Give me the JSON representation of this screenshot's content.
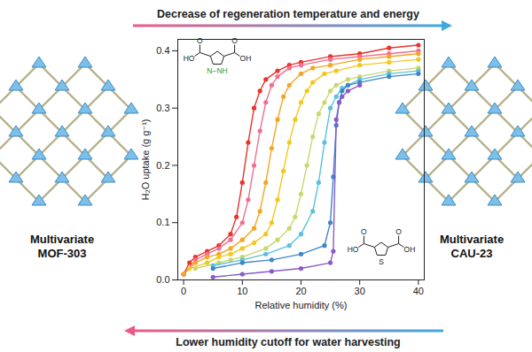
{
  "chart_data": {
    "type": "line",
    "marker": "circle",
    "grid": false,
    "xlabel": "Relative humidity (%)",
    "ylabel": "H₂O uptake (g g⁻¹)",
    "xlim": [
      -1,
      41
    ],
    "xticks": [
      0,
      10,
      20,
      30,
      40
    ],
    "ylim": [
      0,
      0.42
    ],
    "yticks": [
      {
        "value": 0,
        "label": "0.0"
      },
      0.1,
      0.2,
      0.3,
      0.4
    ],
    "series": [
      {
        "color": "#e8352b",
        "x": [
          0,
          1,
          2,
          4,
          6,
          8,
          9,
          10,
          11,
          12,
          13,
          14,
          16,
          18,
          20,
          25,
          30,
          35,
          40
        ],
        "values": [
          0.01,
          0.03,
          0.04,
          0.05,
          0.06,
          0.08,
          0.11,
          0.17,
          0.24,
          0.3,
          0.33,
          0.35,
          0.365,
          0.375,
          0.38,
          0.39,
          0.395,
          0.405,
          0.41
        ]
      },
      {
        "color": "#f06f92",
        "x": [
          0,
          2,
          4,
          6,
          8,
          10,
          11,
          12,
          13,
          14,
          15,
          16,
          18,
          20,
          25,
          30,
          35,
          40
        ],
        "values": [
          0.01,
          0.035,
          0.045,
          0.055,
          0.07,
          0.1,
          0.14,
          0.2,
          0.26,
          0.31,
          0.34,
          0.355,
          0.37,
          0.375,
          0.385,
          0.39,
          0.395,
          0.4
        ]
      },
      {
        "color": "#f5a524",
        "x": [
          0,
          2,
          4,
          6,
          8,
          10,
          12,
          13,
          14,
          15,
          16,
          17,
          18,
          20,
          22,
          25,
          30,
          35,
          40
        ],
        "values": [
          0.01,
          0.03,
          0.04,
          0.045,
          0.055,
          0.07,
          0.09,
          0.12,
          0.17,
          0.23,
          0.28,
          0.32,
          0.34,
          0.36,
          0.37,
          0.375,
          0.385,
          0.39,
          0.395
        ]
      },
      {
        "color": "#f2c81d",
        "x": [
          1,
          4,
          6,
          8,
          10,
          12,
          14,
          15,
          16,
          17,
          18,
          19,
          20,
          21,
          22,
          24,
          26,
          30,
          35,
          40
        ],
        "values": [
          0.02,
          0.03,
          0.04,
          0.045,
          0.055,
          0.065,
          0.08,
          0.1,
          0.14,
          0.19,
          0.24,
          0.28,
          0.31,
          0.33,
          0.345,
          0.36,
          0.365,
          0.375,
          0.38,
          0.385
        ]
      },
      {
        "color": "#c9d76e",
        "x": [
          2,
          6,
          8,
          10,
          14,
          16,
          18,
          19,
          20,
          21,
          22,
          23,
          24,
          25,
          26,
          28,
          30,
          35,
          40
        ],
        "values": [
          0.02,
          0.03,
          0.035,
          0.04,
          0.055,
          0.07,
          0.09,
          0.11,
          0.15,
          0.2,
          0.25,
          0.29,
          0.31,
          0.33,
          0.34,
          0.35,
          0.355,
          0.365,
          0.37
        ]
      },
      {
        "color": "#5bc0de",
        "x": [
          5,
          10,
          14,
          18,
          20,
          22,
          23,
          24,
          25,
          26,
          27,
          28,
          30,
          35,
          40
        ],
        "values": [
          0.025,
          0.035,
          0.045,
          0.06,
          0.08,
          0.12,
          0.17,
          0.24,
          0.3,
          0.32,
          0.335,
          0.34,
          0.35,
          0.36,
          0.365
        ]
      },
      {
        "color": "#3f86c8",
        "x": [
          5,
          10,
          15,
          20,
          24,
          25,
          25.5,
          26,
          26.5,
          27,
          28,
          30,
          35,
          40
        ],
        "values": [
          0.02,
          0.03,
          0.035,
          0.045,
          0.06,
          0.1,
          0.18,
          0.27,
          0.31,
          0.33,
          0.34,
          0.345,
          0.355,
          0.36
        ]
      },
      {
        "color": "#8a5cc8",
        "x": [
          5,
          10,
          15,
          20,
          25,
          25.5,
          26,
          26.5,
          27,
          28,
          30
        ],
        "values": [
          0.005,
          0.01,
          0.015,
          0.02,
          0.03,
          0.05,
          0.28,
          0.31,
          0.32,
          0.33,
          0.34
        ]
      }
    ]
  },
  "top_arrow_text": "Decrease of regeneration temperature and energy",
  "bottom_arrow_text": "Lower humidity cutoff for water harvesting",
  "left_label": [
    "Multivariate",
    "MOF-303"
  ],
  "right_label": [
    "Multivariate",
    "CAU-23"
  ],
  "molecules": [
    {
      "left": "HO",
      "right": "OH",
      "carbonyl": "O",
      "ring": "N−NH"
    },
    {
      "left": "HO",
      "right": "OH",
      "carbonyl": "O",
      "ring": "S"
    }
  ]
}
